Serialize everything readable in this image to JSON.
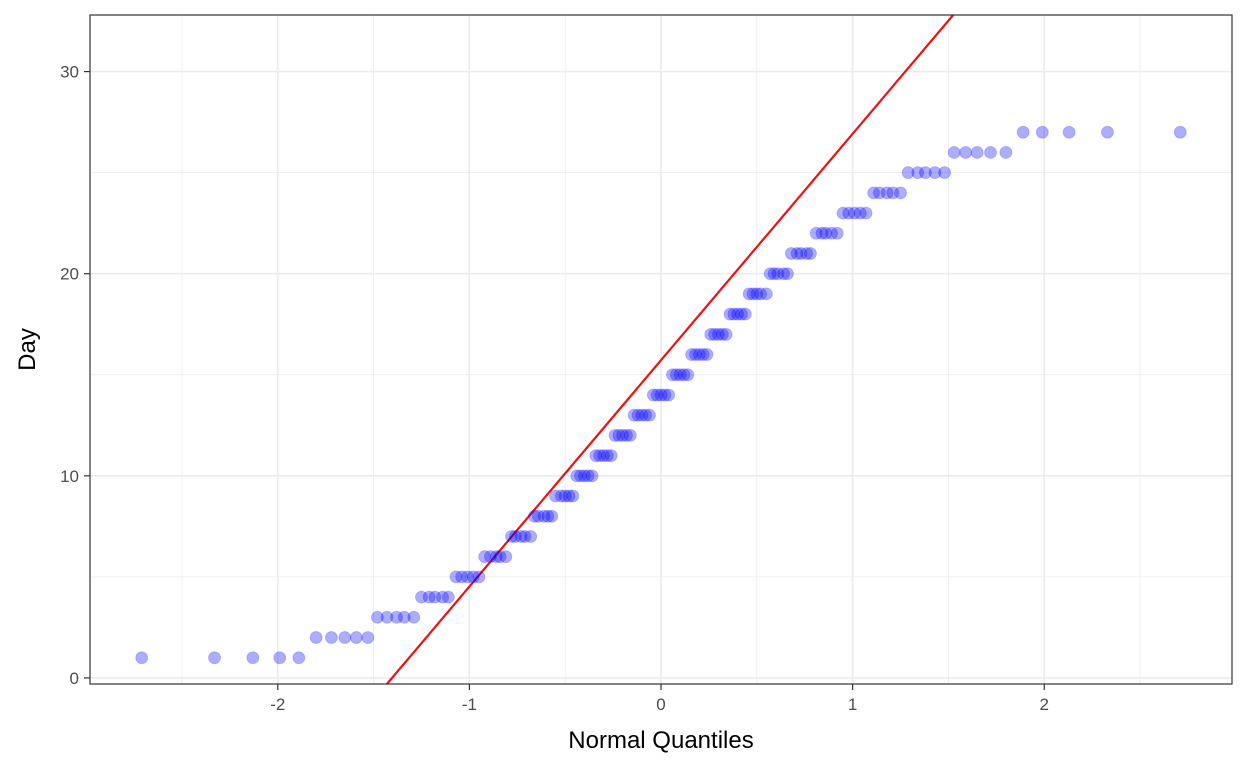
{
  "chart_data": {
    "type": "scatter",
    "xlabel": "Normal Quantiles",
    "ylabel": "Day",
    "xlim": [
      -2.98,
      2.98
    ],
    "ylim": [
      -0.3,
      32.8
    ],
    "x_ticks": [
      -2,
      -1,
      0,
      1,
      2
    ],
    "y_ticks": [
      0,
      10,
      20,
      30
    ],
    "x_tick_labels": [
      "-2",
      "-1",
      "0",
      "1",
      "2"
    ],
    "y_tick_labels": [
      "0",
      "10",
      "20",
      "30"
    ],
    "grid": true,
    "colors": {
      "points": "#0000ff",
      "line": "#ee1111",
      "grid": "#ebebeb",
      "panel_border": "#333333",
      "background": "#ffffff"
    },
    "reference_line": {
      "intercept": 15.72,
      "slope": 11.2
    },
    "series": [
      {
        "points": [
          [
            -2.71,
            1
          ],
          [
            -2.33,
            1
          ],
          [
            -2.13,
            1
          ],
          [
            -1.99,
            1
          ],
          [
            -1.89,
            1
          ],
          [
            -1.8,
            2
          ],
          [
            -1.72,
            2
          ],
          [
            -1.65,
            2
          ],
          [
            -1.59,
            2
          ],
          [
            -1.53,
            2
          ],
          [
            -1.48,
            3
          ],
          [
            -1.43,
            3
          ],
          [
            -1.38,
            3
          ],
          [
            -1.34,
            3
          ],
          [
            -1.29,
            3
          ],
          [
            -1.25,
            4
          ],
          [
            -1.21,
            4
          ],
          [
            -1.18,
            4
          ],
          [
            -1.14,
            4
          ],
          [
            -1.11,
            4
          ],
          [
            -1.07,
            5
          ],
          [
            -1.04,
            5
          ],
          [
            -1.01,
            5
          ],
          [
            -0.98,
            5
          ],
          [
            -0.95,
            5
          ],
          [
            -0.92,
            6
          ],
          [
            -0.89,
            6
          ],
          [
            -0.86,
            6
          ],
          [
            -0.84,
            6
          ],
          [
            -0.81,
            6
          ],
          [
            -0.78,
            7
          ],
          [
            -0.76,
            7
          ],
          [
            -0.73,
            7
          ],
          [
            -0.71,
            7
          ],
          [
            -0.68,
            7
          ],
          [
            -0.66,
            8
          ],
          [
            -0.64,
            8
          ],
          [
            -0.61,
            8
          ],
          [
            -0.59,
            8
          ],
          [
            -0.57,
            8
          ],
          [
            -0.55,
            9
          ],
          [
            -0.52,
            9
          ],
          [
            -0.5,
            9
          ],
          [
            -0.48,
            9
          ],
          [
            -0.46,
            9
          ],
          [
            -0.44,
            10
          ],
          [
            -0.42,
            10
          ],
          [
            -0.4,
            10
          ],
          [
            -0.38,
            10
          ],
          [
            -0.36,
            10
          ],
          [
            -0.34,
            11
          ],
          [
            -0.32,
            11
          ],
          [
            -0.3,
            11
          ],
          [
            -0.28,
            11
          ],
          [
            -0.26,
            11
          ],
          [
            -0.24,
            12
          ],
          [
            -0.22,
            12
          ],
          [
            -0.2,
            12
          ],
          [
            -0.18,
            12
          ],
          [
            -0.16,
            12
          ],
          [
            -0.14,
            13
          ],
          [
            -0.12,
            13
          ],
          [
            -0.1,
            13
          ],
          [
            -0.08,
            13
          ],
          [
            -0.06,
            13
          ],
          [
            -0.04,
            14
          ],
          [
            -0.02,
            14
          ],
          [
            0.0,
            14
          ],
          [
            0.02,
            14
          ],
          [
            0.04,
            14
          ],
          [
            0.06,
            15
          ],
          [
            0.08,
            15
          ],
          [
            0.1,
            15
          ],
          [
            0.12,
            15
          ],
          [
            0.14,
            15
          ],
          [
            0.16,
            16
          ],
          [
            0.18,
            16
          ],
          [
            0.2,
            16
          ],
          [
            0.22,
            16
          ],
          [
            0.24,
            16
          ],
          [
            0.26,
            17
          ],
          [
            0.28,
            17
          ],
          [
            0.3,
            17
          ],
          [
            0.32,
            17
          ],
          [
            0.34,
            17
          ],
          [
            0.36,
            18
          ],
          [
            0.38,
            18
          ],
          [
            0.4,
            18
          ],
          [
            0.42,
            18
          ],
          [
            0.44,
            18
          ],
          [
            0.46,
            19
          ],
          [
            0.48,
            19
          ],
          [
            0.5,
            19
          ],
          [
            0.52,
            19
          ],
          [
            0.55,
            19
          ],
          [
            0.57,
            20
          ],
          [
            0.59,
            20
          ],
          [
            0.61,
            20
          ],
          [
            0.64,
            20
          ],
          [
            0.66,
            20
          ],
          [
            0.68,
            21
          ],
          [
            0.71,
            21
          ],
          [
            0.73,
            21
          ],
          [
            0.76,
            21
          ],
          [
            0.78,
            21
          ],
          [
            0.81,
            22
          ],
          [
            0.84,
            22
          ],
          [
            0.86,
            22
          ],
          [
            0.89,
            22
          ],
          [
            0.92,
            22
          ],
          [
            0.95,
            23
          ],
          [
            0.98,
            23
          ],
          [
            1.01,
            23
          ],
          [
            1.04,
            23
          ],
          [
            1.07,
            23
          ],
          [
            1.11,
            24
          ],
          [
            1.14,
            24
          ],
          [
            1.18,
            24
          ],
          [
            1.21,
            24
          ],
          [
            1.25,
            24
          ],
          [
            1.29,
            25
          ],
          [
            1.34,
            25
          ],
          [
            1.38,
            25
          ],
          [
            1.43,
            25
          ],
          [
            1.48,
            25
          ],
          [
            1.53,
            26
          ],
          [
            1.59,
            26
          ],
          [
            1.65,
            26
          ],
          [
            1.72,
            26
          ],
          [
            1.8,
            26
          ],
          [
            1.89,
            27
          ],
          [
            1.99,
            27
          ],
          [
            2.13,
            27
          ],
          [
            2.33,
            27
          ],
          [
            2.71,
            27
          ]
        ]
      }
    ]
  }
}
